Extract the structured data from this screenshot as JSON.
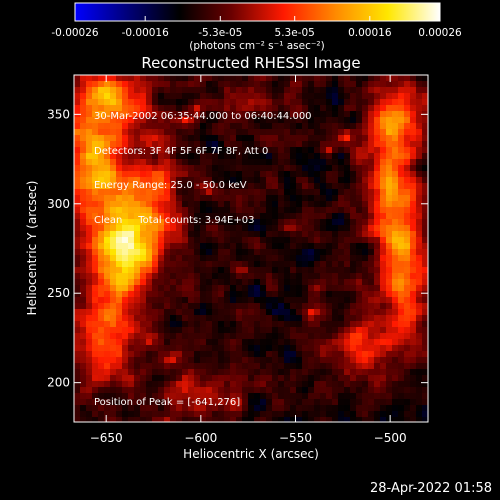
{
  "title": "Reconstructed RHESSI Image",
  "colorbar": {
    "colors": [
      "#0000ff",
      "#00007a",
      "#000000",
      "#6a0000",
      "#ff1a00",
      "#ff8a00",
      "#ffe700",
      "#ffffff"
    ],
    "tick_labels": [
      "-0.00026",
      "-0.00016",
      "-5.3e-05",
      "5.3e-05",
      "0.00016",
      "0.00026"
    ],
    "tick_values": [
      -0.00026,
      -0.00016,
      -5.3e-05,
      5.3e-05,
      0.00016,
      0.00026
    ],
    "range": [
      -0.00026,
      0.00026
    ],
    "units": "(photons cm⁻² s⁻¹ asec⁻²)"
  },
  "info_lines": [
    "30-Mar-2002 06:35:44.000 to 06:40:44.000",
    "Detectors: 3F 4F 5F 6F 7F 8F, Att 0",
    "Energy Range: 25.0 - 50.0 keV",
    "Clean     Total counts: 3.94E+03"
  ],
  "peak_text": "Position of Peak = [-641,276]",
  "timestamp": "28-Apr-2022 01:58",
  "chart_data": {
    "type": "heatmap",
    "title": "Reconstructed RHESSI Image",
    "xlabel": "Heliocentric X (arcsec)",
    "ylabel": "Heliocentric Y (arcsec)",
    "xlim": [
      -667,
      -480
    ],
    "ylim": [
      178,
      372
    ],
    "xticks": [
      -650,
      -600,
      -550,
      -500
    ],
    "yticks": [
      200,
      250,
      300,
      350
    ],
    "peak": [
      -641,
      276
    ],
    "value_units": "photons cm^-2 s^-1 asec^-2",
    "value_range": [
      -0.00026,
      0.00026
    ],
    "regions": [
      {
        "x": -641,
        "y": 276,
        "level": 1.0,
        "sx": 10,
        "sy": 18
      },
      {
        "x": -655,
        "y": 325,
        "level": 0.75,
        "sx": 12,
        "sy": 28
      },
      {
        "x": -652,
        "y": 225,
        "level": 0.55,
        "sx": 12,
        "sy": 20
      },
      {
        "x": -648,
        "y": 360,
        "level": 0.5,
        "sx": 14,
        "sy": 10
      },
      {
        "x": -625,
        "y": 300,
        "level": 0.5,
        "sx": 10,
        "sy": 25
      },
      {
        "x": -500,
        "y": 310,
        "level": 0.62,
        "sx": 10,
        "sy": 26
      },
      {
        "x": -492,
        "y": 260,
        "level": 0.58,
        "sx": 9,
        "sy": 24
      },
      {
        "x": -495,
        "y": 350,
        "level": 0.45,
        "sx": 10,
        "sy": 14
      },
      {
        "x": -515,
        "y": 220,
        "level": 0.4,
        "sx": 12,
        "sy": 16
      },
      {
        "x": -600,
        "y": 195,
        "level": 0.35,
        "sx": 16,
        "sy": 8
      },
      {
        "x": -575,
        "y": 360,
        "level": 0.2,
        "sx": 14,
        "sy": 8
      }
    ]
  }
}
